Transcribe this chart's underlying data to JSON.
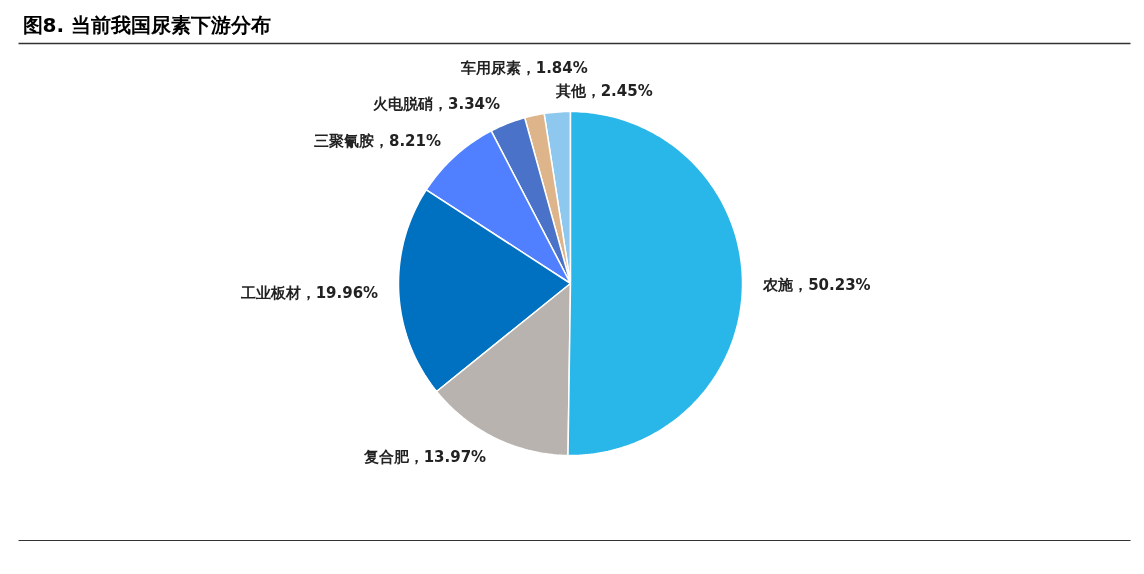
{
  "chart_data": {
    "type": "pie",
    "title": "图8. 当前我国尿素下游分布",
    "categories": [
      "农施",
      "复合肥",
      "工业板材",
      "三聚氰胺",
      "火电脱硝",
      "车用尿素",
      "其他"
    ],
    "values": [
      50.23,
      13.97,
      19.96,
      8.21,
      3.34,
      1.84,
      2.45
    ],
    "value_labels": [
      "50.23%",
      "13.97%",
      "19.96%",
      "8.21%",
      "3.34%",
      "1.84%",
      "2.45%"
    ],
    "colors": [
      "#29b6e8",
      "#b9b3b0",
      "#0070c0",
      "#5080ff",
      "#4a72c8",
      "#deb58a",
      "#8ec8ee"
    ],
    "legend": false
  }
}
